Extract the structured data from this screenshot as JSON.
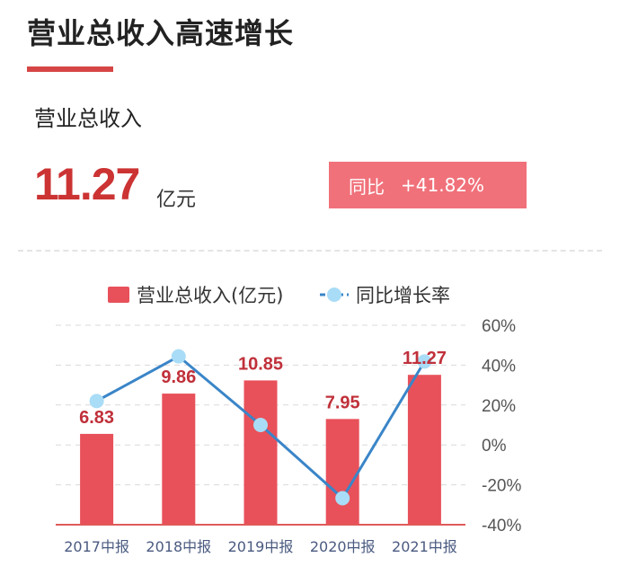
{
  "header": {
    "title": "营业总收入高速增长"
  },
  "metric": {
    "label": "营业总收入",
    "value": "11.27",
    "unit": "亿元",
    "yoy_label": "同比",
    "yoy_value": "+41.82%"
  },
  "colors": {
    "accent": "#d64545",
    "bar": "#e8515a",
    "value_label": "#c0303a",
    "line": "#3a85c8",
    "marker": "#a9dcf6",
    "badge": "#f0717a"
  },
  "chart_data": {
    "type": "bar",
    "categories": [
      "2017中报",
      "2018中报",
      "2019中报",
      "2020中报",
      "2021中报"
    ],
    "series": [
      {
        "name": "营业总收入(亿元)",
        "type": "bar",
        "axis": "left",
        "values": [
          6.83,
          9.86,
          10.85,
          7.95,
          11.27
        ],
        "labels": [
          "6.83",
          "9.86",
          "10.85",
          "7.95",
          "11.27"
        ]
      },
      {
        "name": "同比增长率",
        "type": "line",
        "axis": "right",
        "values": [
          22,
          44.4,
          10,
          -26.7,
          41.82
        ]
      }
    ],
    "y_left_range": [
      0,
      15
    ],
    "y_right": {
      "range": [
        -40,
        60
      ],
      "ticks": [
        60,
        40,
        20,
        0,
        -20,
        -40
      ],
      "tick_labels": [
        "60%",
        "40%",
        "20%",
        "0%",
        "-20%",
        "-40%"
      ]
    },
    "grid": true,
    "legend_position": "top"
  }
}
